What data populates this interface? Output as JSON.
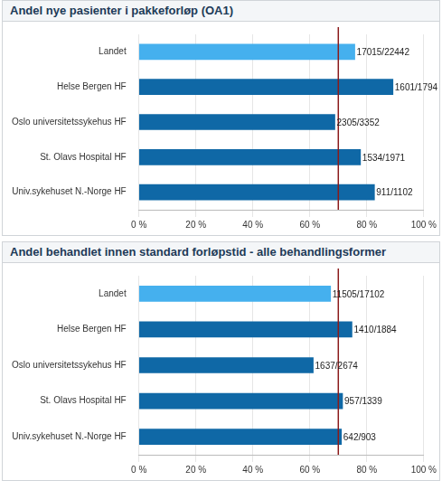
{
  "chart_data": [
    {
      "type": "bar",
      "orientation": "horizontal",
      "title": "Andel nye pasienter i pakkeforløp (OA1)",
      "categories": [
        "Landet",
        "Helse Bergen HF",
        "Oslo universitetssykehus HF",
        "St. Olavs Hospital HF",
        "Univ.sykehuset N.-Norge HF"
      ],
      "values": [
        75.8,
        89.2,
        68.8,
        77.8,
        82.7
      ],
      "value_labels": [
        "17015/22442",
        "1601/1794",
        "2305/3352",
        "1534/1971",
        "911/1102"
      ],
      "colors": [
        "#45b0ee",
        "#0f68a6",
        "#0f68a6",
        "#0f68a6",
        "#0f68a6"
      ],
      "xlim": [
        0,
        100
      ],
      "xticks": [
        {
          "value": 0,
          "label": "0 %"
        },
        {
          "value": 20,
          "label": "20 %"
        },
        {
          "value": 40,
          "label": "40 %"
        },
        {
          "value": 60,
          "label": "60 %"
        },
        {
          "value": 80,
          "label": "80 %"
        },
        {
          "value": 100,
          "label": "100 %"
        }
      ],
      "grid": true,
      "data_labels": true,
      "reference_line": 70
    },
    {
      "type": "bar",
      "orientation": "horizontal",
      "title": "Andel behandlet innen standard forløpstid - alle behandlingsformer",
      "categories": [
        "Landet",
        "Helse Bergen HF",
        "Oslo universitetssykehus HF",
        "St. Olavs Hospital HF",
        "Univ.sykehuset N.-Norge HF"
      ],
      "values": [
        67.3,
        74.8,
        61.2,
        71.5,
        71.1
      ],
      "value_labels": [
        "11505/17102",
        "1410/1884",
        "1637/2674",
        "957/1339",
        "642/903"
      ],
      "colors": [
        "#45b0ee",
        "#0f68a6",
        "#0f68a6",
        "#0f68a6",
        "#0f68a6"
      ],
      "xlim": [
        0,
        100
      ],
      "xticks": [
        {
          "value": 0,
          "label": "0 %"
        },
        {
          "value": 20,
          "label": "20 %"
        },
        {
          "value": 40,
          "label": "40 %"
        },
        {
          "value": 60,
          "label": "60 %"
        },
        {
          "value": 80,
          "label": "80 %"
        },
        {
          "value": 100,
          "label": "100 %"
        }
      ],
      "grid": true,
      "data_labels": true,
      "reference_line": 70
    }
  ]
}
